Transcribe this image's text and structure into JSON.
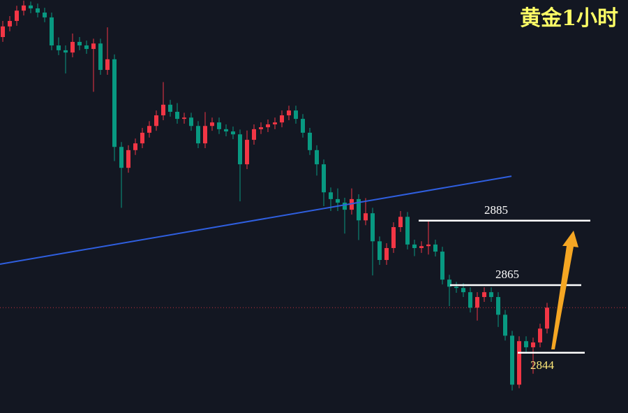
{
  "chart_data": {
    "type": "candlestick",
    "title": "黄金1小时",
    "title_color": "#ffff66",
    "ylim": [
      2825.3,
      2953.5
    ],
    "up_color": "#f23645",
    "down_color": "#089981",
    "open": [
      2942.0,
      2945.3,
      2947.0,
      2950.2,
      2951.8,
      2950.9,
      2949.6,
      2948.1,
      2939.4,
      2937.9,
      2937.2,
      2940.5,
      2939.4,
      2938.3,
      2940.0,
      2931.8,
      2935.1,
      2907.9,
      2901.4,
      2906.9,
      2909.0,
      2912.3,
      2914.4,
      2917.7,
      2921.0,
      2918.8,
      2916.6,
      2917.0,
      2914.4,
      2909.0,
      2914.4,
      2915.5,
      2913.4,
      2912.7,
      2911.8,
      2902.5,
      2910.1,
      2913.4,
      2914.0,
      2914.9,
      2915.5,
      2917.7,
      2919.2,
      2916.6,
      2912.3,
      2906.9,
      2902.5,
      2893.8,
      2891.7,
      2890.6,
      2888.4,
      2891.7,
      2885.1,
      2887.3,
      2878.6,
      2872.8,
      2876.5,
      2883.0,
      2886.2,
      2877.6,
      2876.5,
      2877.1,
      2877.6,
      2875.4,
      2866.7,
      2864.5,
      2864.1,
      2862.8,
      2858.0,
      2861.3,
      2862.8,
      2861.3,
      2855.8,
      2849.3,
      2834.1,
      2847.6,
      2845.7,
      2847.2,
      2851.5
    ],
    "high": [
      2947.0,
      2948.5,
      2951.7,
      2953.3,
      2953.0,
      2952.4,
      2951.1,
      2949.6,
      2941.9,
      2939.4,
      2943.1,
      2942.0,
      2940.9,
      2941.5,
      2941.5,
      2945.0,
      2936.6,
      2909.4,
      2908.4,
      2910.5,
      2913.8,
      2915.9,
      2919.2,
      2928.0,
      2922.5,
      2921.5,
      2918.5,
      2918.5,
      2915.9,
      2918.7,
      2917.0,
      2917.0,
      2914.9,
      2914.2,
      2913.3,
      2913.0,
      2914.9,
      2915.5,
      2916.4,
      2917.0,
      2919.2,
      2920.7,
      2920.7,
      2918.1,
      2913.8,
      2908.4,
      2904.0,
      2895.3,
      2895.0,
      2892.1,
      2895.0,
      2893.2,
      2892.0,
      2889.0,
      2880.1,
      2878.0,
      2884.5,
      2888.0,
      2887.7,
      2879.1,
      2878.6,
      2885.0,
      2879.1,
      2876.9,
      2868.2,
      2866.0,
      2865.6,
      2864.3,
      2862.8,
      2864.3,
      2864.3,
      2862.8,
      2857.3,
      2850.8,
      2849.1,
      2849.1,
      2848.7,
      2853.0,
      2859.5
    ],
    "low": [
      2940.5,
      2943.8,
      2945.5,
      2948.7,
      2949.4,
      2948.1,
      2946.6,
      2937.9,
      2936.4,
      2930.7,
      2935.7,
      2937.9,
      2936.8,
      2925.0,
      2930.3,
      2930.3,
      2903.5,
      2889.0,
      2899.9,
      2905.4,
      2907.5,
      2910.8,
      2912.9,
      2916.2,
      2917.3,
      2915.1,
      2915.1,
      2912.9,
      2907.5,
      2907.5,
      2912.9,
      2911.9,
      2911.2,
      2910.3,
      2891.0,
      2901.0,
      2908.6,
      2911.9,
      2912.5,
      2913.4,
      2914.0,
      2916.2,
      2915.1,
      2910.8,
      2905.4,
      2899.0,
      2889.5,
      2888.0,
      2888.0,
      2881.0,
      2886.9,
      2879.0,
      2883.6,
      2868.0,
      2871.3,
      2871.3,
      2875.0,
      2881.5,
      2876.1,
      2874.0,
      2875.0,
      2874.5,
      2873.9,
      2865.2,
      2858.5,
      2862.6,
      2861.3,
      2856.5,
      2854.0,
      2859.8,
      2859.8,
      2852.0,
      2847.8,
      2832.3,
      2833.0,
      2844.2,
      2837.5,
      2845.7,
      2850.0
    ],
    "close": [
      2945.3,
      2947.0,
      2950.2,
      2951.8,
      2950.9,
      2949.6,
      2948.1,
      2939.4,
      2937.9,
      2937.2,
      2940.5,
      2939.4,
      2938.3,
      2940.0,
      2931.8,
      2935.1,
      2907.9,
      2901.4,
      2906.9,
      2909.0,
      2912.3,
      2914.4,
      2917.7,
      2921.0,
      2918.8,
      2916.6,
      2917.0,
      2914.4,
      2909.0,
      2914.4,
      2915.5,
      2913.4,
      2912.7,
      2911.8,
      2902.5,
      2910.1,
      2913.4,
      2914.0,
      2914.9,
      2915.5,
      2917.7,
      2919.2,
      2916.6,
      2912.3,
      2906.9,
      2902.5,
      2893.8,
      2891.7,
      2890.6,
      2888.4,
      2891.7,
      2885.1,
      2887.3,
      2878.6,
      2872.8,
      2876.5,
      2883.0,
      2886.2,
      2877.6,
      2876.5,
      2877.1,
      2877.6,
      2875.4,
      2866.7,
      2864.5,
      2864.1,
      2862.8,
      2858.0,
      2861.3,
      2862.8,
      2861.3,
      2855.8,
      2849.3,
      2834.1,
      2847.6,
      2845.7,
      2847.2,
      2851.5,
      2858.0
    ],
    "trendline": {
      "x": [
        -0.4,
        72.9
      ],
      "y": [
        2871.5,
        2898.8
      ],
      "color": "#2f5fe0"
    },
    "levels": [
      {
        "value": 2885,
        "color": "#ffffff",
        "label_color": "#ffffff"
      },
      {
        "value": 2865,
        "color": "#ffffff",
        "label_color": "#ffffff"
      },
      {
        "value": 2844,
        "color": "#ffffff",
        "label_color": "#ffe97a"
      }
    ],
    "arrow_color": "#f5a623"
  }
}
